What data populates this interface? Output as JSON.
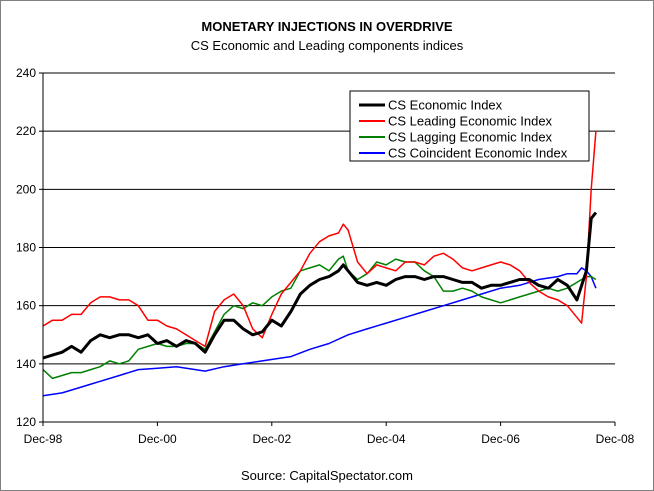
{
  "chart_data": {
    "type": "line",
    "title": "MONETARY INJECTIONS IN OVERDRIVE",
    "subtitle": "CS Economic and Leading components indices",
    "source": "Source: CapitalSpectator.com",
    "ylim": [
      120,
      240
    ],
    "yticks": [
      120,
      140,
      160,
      180,
      200,
      220,
      240
    ],
    "xlim": [
      0,
      120
    ],
    "xticks": [
      {
        "x": 0,
        "label": "Dec-98"
      },
      {
        "x": 24,
        "label": "Dec-00"
      },
      {
        "x": 48,
        "label": "Dec-02"
      },
      {
        "x": 72,
        "label": "Dec-04"
      },
      {
        "x": 96,
        "label": "Dec-06"
      },
      {
        "x": 120,
        "label": "Dec-08"
      }
    ],
    "grid": true,
    "legend_position": "top-right",
    "series": [
      {
        "name": "CS Economic Index",
        "color": "#000000",
        "width": 3,
        "points": [
          [
            0,
            142
          ],
          [
            2,
            143
          ],
          [
            4,
            144
          ],
          [
            6,
            146
          ],
          [
            8,
            144
          ],
          [
            10,
            148
          ],
          [
            12,
            150
          ],
          [
            14,
            149
          ],
          [
            16,
            150
          ],
          [
            18,
            150
          ],
          [
            20,
            149
          ],
          [
            22,
            150
          ],
          [
            24,
            147
          ],
          [
            26,
            148
          ],
          [
            28,
            146
          ],
          [
            30,
            148
          ],
          [
            32,
            147
          ],
          [
            34,
            144
          ],
          [
            36,
            150
          ],
          [
            38,
            155
          ],
          [
            40,
            155
          ],
          [
            42,
            152
          ],
          [
            44,
            150
          ],
          [
            46,
            151
          ],
          [
            48,
            155
          ],
          [
            50,
            153
          ],
          [
            52,
            158
          ],
          [
            54,
            164
          ],
          [
            56,
            167
          ],
          [
            58,
            169
          ],
          [
            60,
            170
          ],
          [
            62,
            172
          ],
          [
            63,
            174
          ],
          [
            64,
            172
          ],
          [
            66,
            168
          ],
          [
            68,
            167
          ],
          [
            70,
            168
          ],
          [
            72,
            167
          ],
          [
            74,
            169
          ],
          [
            76,
            170
          ],
          [
            78,
            170
          ],
          [
            80,
            169
          ],
          [
            82,
            170
          ],
          [
            84,
            170
          ],
          [
            86,
            169
          ],
          [
            88,
            168
          ],
          [
            90,
            168
          ],
          [
            92,
            166
          ],
          [
            94,
            167
          ],
          [
            96,
            167
          ],
          [
            98,
            168
          ],
          [
            100,
            169
          ],
          [
            102,
            169
          ],
          [
            104,
            167
          ],
          [
            106,
            166
          ],
          [
            108,
            169
          ],
          [
            110,
            167
          ],
          [
            112,
            162
          ],
          [
            114,
            172
          ],
          [
            115,
            190
          ],
          [
            116,
            192
          ]
        ]
      },
      {
        "name": "CS Leading Economic Index",
        "color": "#ff0000",
        "width": 1.5,
        "points": [
          [
            0,
            153
          ],
          [
            2,
            155
          ],
          [
            4,
            155
          ],
          [
            6,
            157
          ],
          [
            8,
            157
          ],
          [
            10,
            161
          ],
          [
            12,
            163
          ],
          [
            14,
            163
          ],
          [
            16,
            162
          ],
          [
            18,
            162
          ],
          [
            20,
            160
          ],
          [
            22,
            155
          ],
          [
            24,
            155
          ],
          [
            26,
            153
          ],
          [
            28,
            152
          ],
          [
            30,
            150
          ],
          [
            32,
            148
          ],
          [
            34,
            146
          ],
          [
            36,
            158
          ],
          [
            38,
            162
          ],
          [
            40,
            164
          ],
          [
            42,
            160
          ],
          [
            44,
            152
          ],
          [
            46,
            149
          ],
          [
            48,
            157
          ],
          [
            50,
            164
          ],
          [
            52,
            168
          ],
          [
            54,
            172
          ],
          [
            56,
            178
          ],
          [
            58,
            182
          ],
          [
            60,
            184
          ],
          [
            62,
            185
          ],
          [
            63,
            188
          ],
          [
            64,
            186
          ],
          [
            66,
            175
          ],
          [
            68,
            171
          ],
          [
            70,
            174
          ],
          [
            72,
            173
          ],
          [
            74,
            172
          ],
          [
            76,
            175
          ],
          [
            78,
            175
          ],
          [
            80,
            174
          ],
          [
            82,
            177
          ],
          [
            84,
            178
          ],
          [
            86,
            176
          ],
          [
            88,
            173
          ],
          [
            90,
            172
          ],
          [
            92,
            173
          ],
          [
            94,
            174
          ],
          [
            96,
            175
          ],
          [
            98,
            174
          ],
          [
            100,
            172
          ],
          [
            102,
            168
          ],
          [
            104,
            165
          ],
          [
            106,
            163
          ],
          [
            108,
            162
          ],
          [
            110,
            160
          ],
          [
            112,
            156
          ],
          [
            113,
            154
          ],
          [
            114,
            170
          ],
          [
            115,
            200
          ],
          [
            116,
            220
          ]
        ]
      },
      {
        "name": "CS Lagging Economic Index",
        "color": "#008000",
        "width": 1.5,
        "points": [
          [
            0,
            138
          ],
          [
            2,
            135
          ],
          [
            4,
            136
          ],
          [
            6,
            137
          ],
          [
            8,
            137
          ],
          [
            10,
            138
          ],
          [
            12,
            139
          ],
          [
            14,
            141
          ],
          [
            16,
            140
          ],
          [
            18,
            141
          ],
          [
            20,
            145
          ],
          [
            22,
            146
          ],
          [
            24,
            147
          ],
          [
            26,
            146
          ],
          [
            28,
            146
          ],
          [
            30,
            147
          ],
          [
            32,
            147
          ],
          [
            34,
            145
          ],
          [
            36,
            151
          ],
          [
            38,
            157
          ],
          [
            40,
            160
          ],
          [
            42,
            159
          ],
          [
            44,
            161
          ],
          [
            46,
            160
          ],
          [
            48,
            163
          ],
          [
            50,
            165
          ],
          [
            52,
            166
          ],
          [
            54,
            172
          ],
          [
            56,
            173
          ],
          [
            58,
            174
          ],
          [
            60,
            172
          ],
          [
            62,
            176
          ],
          [
            63,
            177
          ],
          [
            64,
            172
          ],
          [
            66,
            169
          ],
          [
            68,
            171
          ],
          [
            70,
            175
          ],
          [
            72,
            174
          ],
          [
            74,
            176
          ],
          [
            76,
            175
          ],
          [
            78,
            175
          ],
          [
            80,
            172
          ],
          [
            82,
            170
          ],
          [
            84,
            165
          ],
          [
            86,
            165
          ],
          [
            88,
            166
          ],
          [
            90,
            165
          ],
          [
            92,
            163
          ],
          [
            94,
            162
          ],
          [
            96,
            161
          ],
          [
            98,
            162
          ],
          [
            100,
            163
          ],
          [
            102,
            164
          ],
          [
            104,
            165
          ],
          [
            106,
            166
          ],
          [
            108,
            165
          ],
          [
            110,
            166
          ],
          [
            112,
            168
          ],
          [
            114,
            170
          ],
          [
            115,
            170
          ],
          [
            116,
            169
          ]
        ]
      },
      {
        "name": "CS Coincident Economic Index",
        "color": "#0000ff",
        "width": 1.5,
        "points": [
          [
            0,
            129
          ],
          [
            4,
            130
          ],
          [
            8,
            132
          ],
          [
            12,
            134
          ],
          [
            16,
            136
          ],
          [
            20,
            138
          ],
          [
            24,
            138.5
          ],
          [
            28,
            139
          ],
          [
            32,
            138
          ],
          [
            34,
            137.5
          ],
          [
            38,
            139
          ],
          [
            42,
            140
          ],
          [
            46,
            141
          ],
          [
            50,
            142
          ],
          [
            52,
            142.5
          ],
          [
            56,
            145
          ],
          [
            60,
            147
          ],
          [
            64,
            150
          ],
          [
            68,
            152
          ],
          [
            72,
            154
          ],
          [
            76,
            156
          ],
          [
            80,
            158
          ],
          [
            84,
            160
          ],
          [
            88,
            162
          ],
          [
            92,
            164
          ],
          [
            96,
            166
          ],
          [
            100,
            167
          ],
          [
            104,
            169
          ],
          [
            108,
            170
          ],
          [
            110,
            171
          ],
          [
            112,
            171
          ],
          [
            113,
            173
          ],
          [
            114,
            172
          ],
          [
            115,
            170
          ],
          [
            116,
            166
          ]
        ]
      }
    ]
  }
}
